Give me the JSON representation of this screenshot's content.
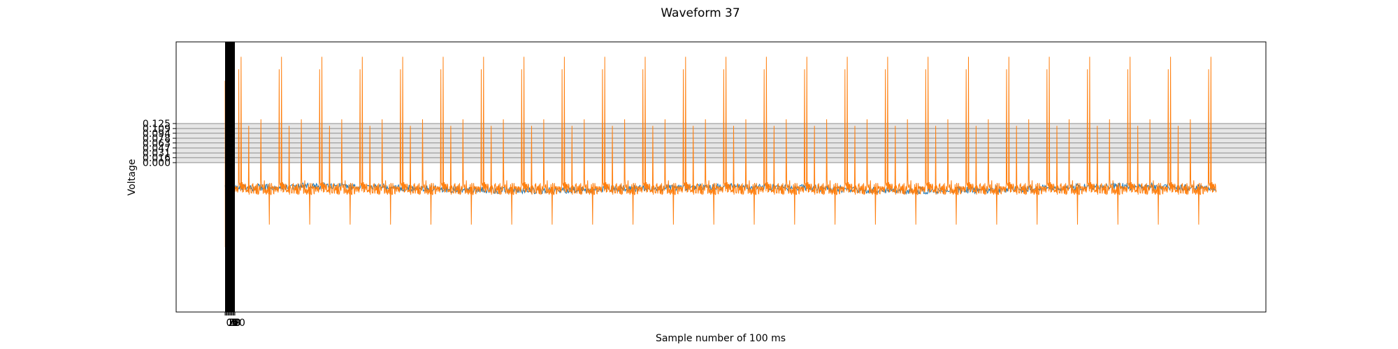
{
  "chart_data": {
    "type": "line",
    "title": "Waveform 37",
    "xlabel": "Sample number of 100 ms",
    "ylabel": "Voltage",
    "grid": true,
    "legend": "none",
    "y_tick_labels": [
      "0.000",
      "0.016",
      "0.031",
      "0.047",
      "0.063",
      "0.078",
      "0.094",
      "0.109",
      "0.125"
    ],
    "x_tick_labels": [
      "0",
      "1",
      "2",
      "3",
      "4",
      "5",
      "6",
      "7",
      "8",
      "9",
      "10"
    ],
    "series": [
      {
        "color": "#1f77b4",
        "description_free": true,
        "baseline_voltage": -0.09,
        "noise_amplitude": 0.02
      },
      {
        "color": "#ff7f0e",
        "baseline_voltage": -0.09,
        "spike_max_voltage": 0.36,
        "spike_min_voltage": -0.42
      }
    ]
  }
}
